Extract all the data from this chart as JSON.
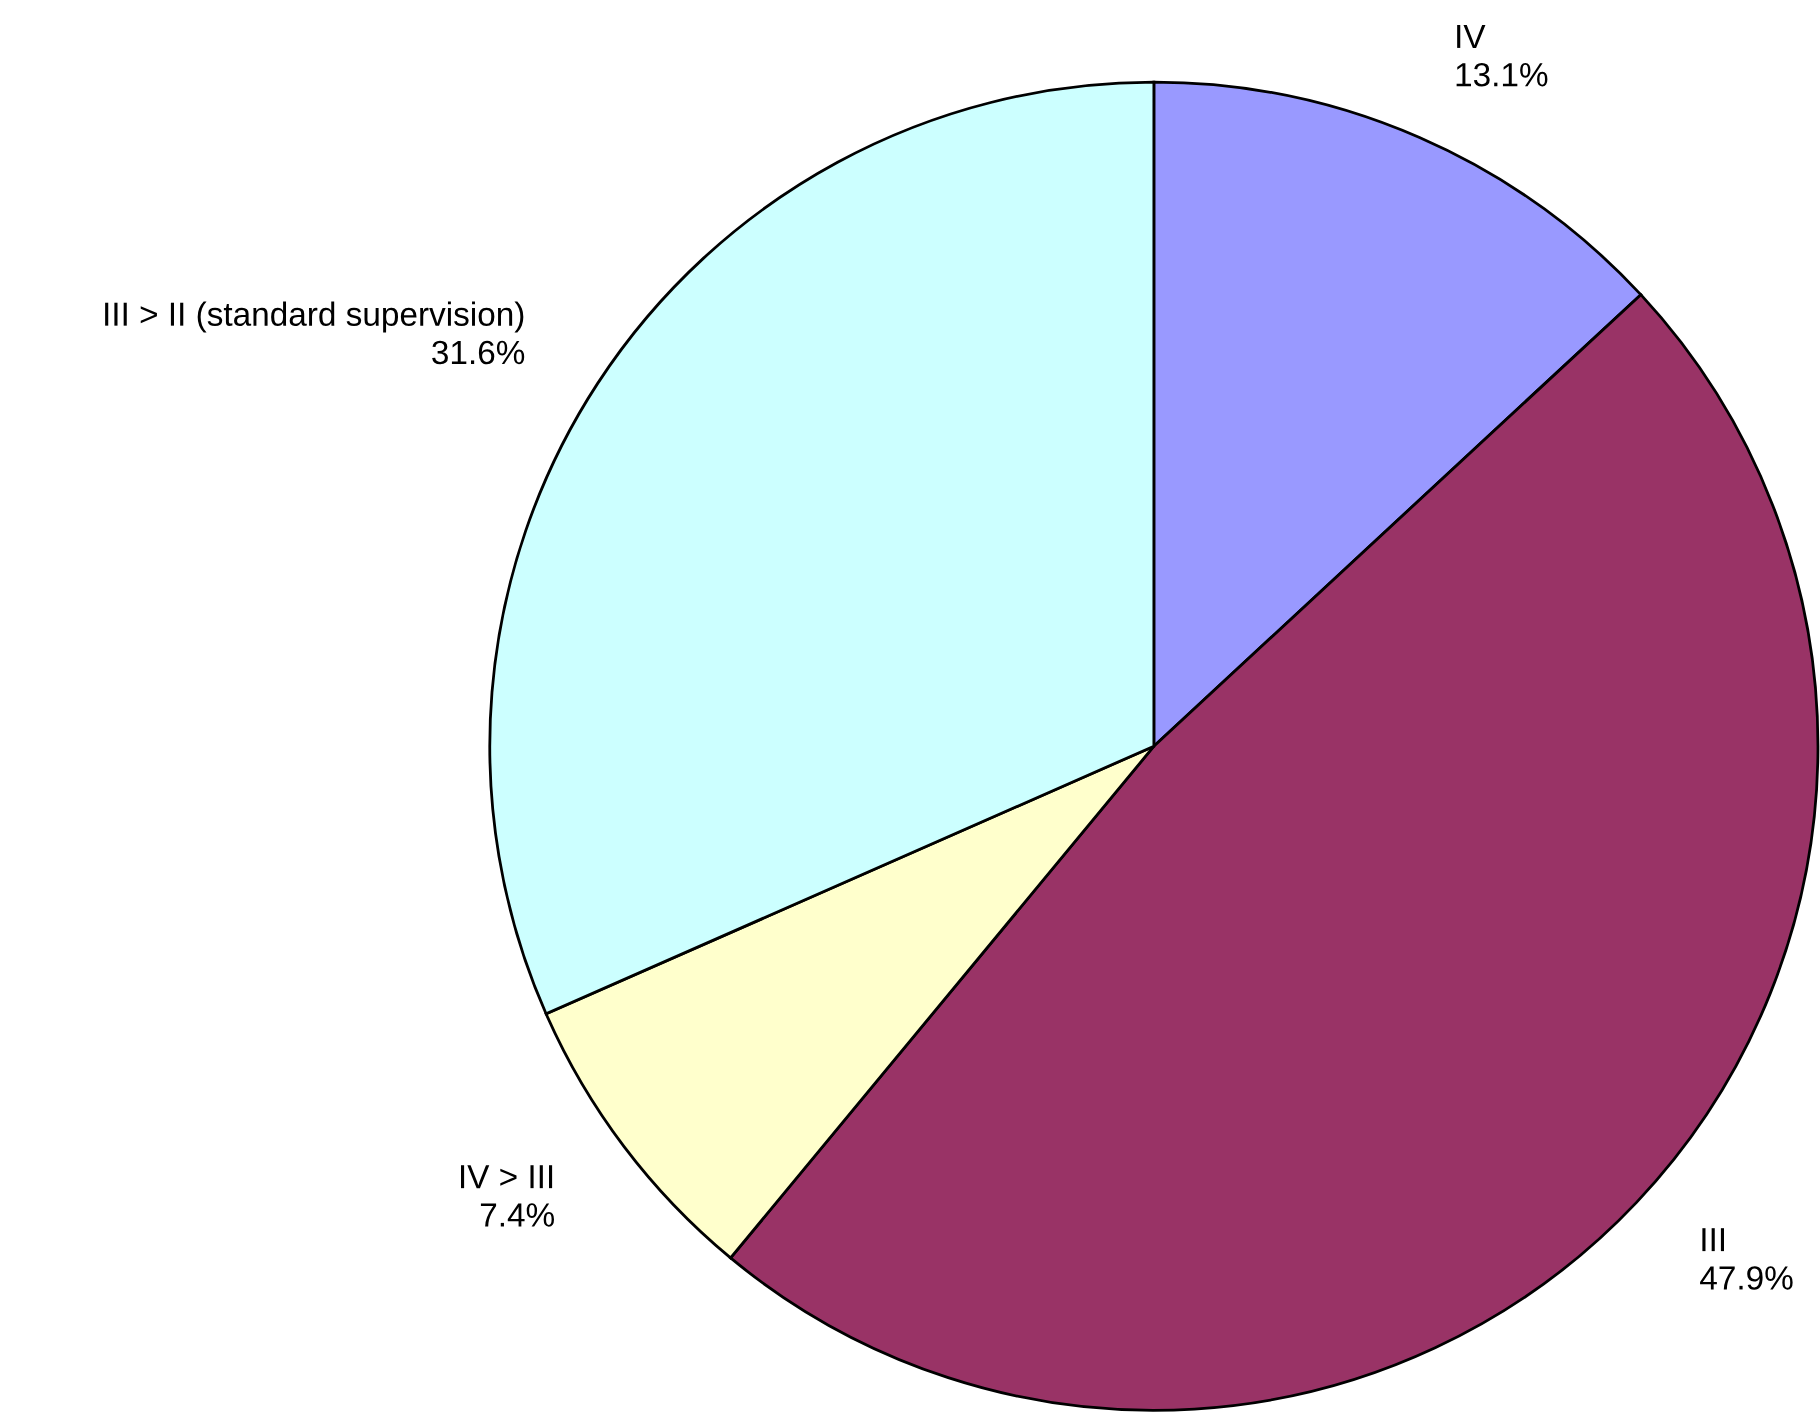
{
  "chart_data": {
    "type": "pie",
    "categories": [
      "IV",
      "III",
      "IV > III",
      "III > II (standard supervision)"
    ],
    "values": [
      13.1,
      47.9,
      7.4,
      31.6
    ],
    "colors": [
      "#9999ff",
      "#993366",
      "#ffffcc",
      "#ccffff"
    ],
    "value_labels": [
      "13.1%",
      "47.9%",
      "7.4%",
      "31.6%"
    ]
  }
}
